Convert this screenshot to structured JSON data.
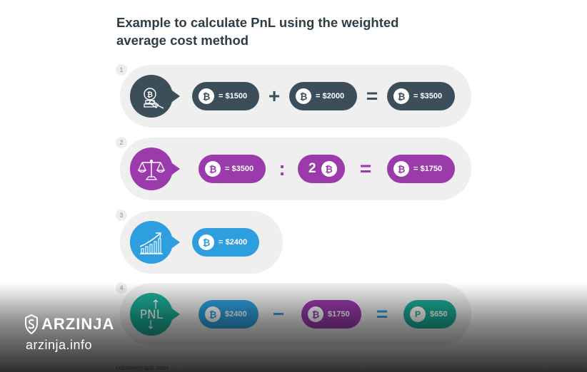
{
  "title": "Example to calculate PnL using the weighted average cost method",
  "colors": {
    "row_bg": "#efefef",
    "dark": "#3c4e59",
    "purple": "#9a3aab",
    "blue": "#2e9fde",
    "teal": "#1bad97"
  },
  "steps": [
    {
      "number": "1",
      "icon": "auction-hammer-bitcoin-icon",
      "pills": [
        "= $1500",
        "= $2000",
        "= $3500"
      ],
      "operators": [
        "+",
        "="
      ]
    },
    {
      "number": "2",
      "icon": "balance-scale-icon",
      "pills": [
        "= $3500",
        "2",
        "= $1750"
      ],
      "operators": [
        ":",
        "="
      ]
    },
    {
      "number": "3",
      "icon": "rising-chart-icon",
      "pills": [
        "= $2400"
      ]
    },
    {
      "number": "4",
      "icon": "pnl-arrows-icon",
      "badge_text": "PNL",
      "pills": [
        "$2400",
        "$1750",
        "$650"
      ],
      "operators": [
        "−",
        "="
      ]
    }
  ],
  "watermark": {
    "brand": "ARZINJA",
    "url": "arzinja.info"
  },
  "source": "cointelegraph.com"
}
